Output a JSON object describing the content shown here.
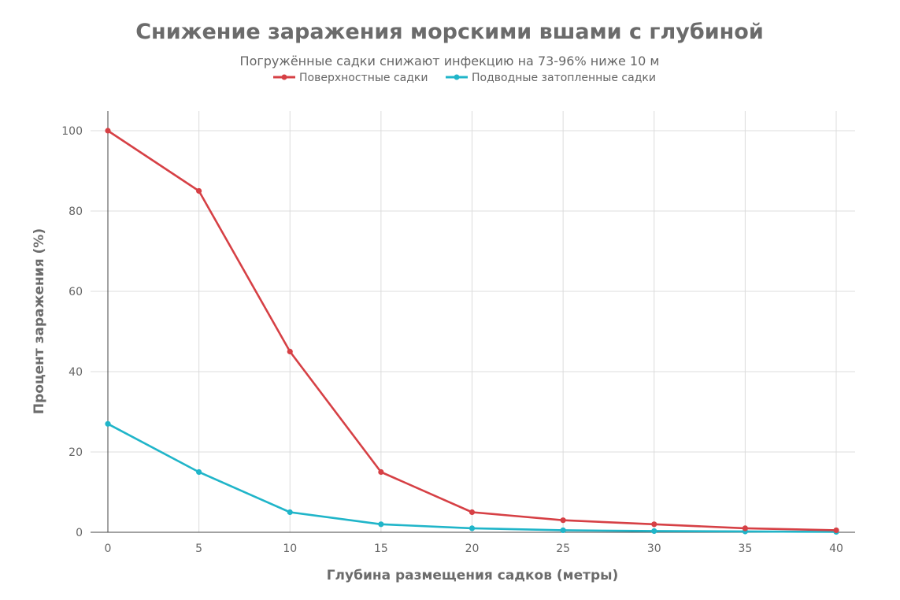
{
  "chart_data": {
    "type": "line",
    "title": "Снижение заражения морскими вшами с глубиной",
    "subtitle": "Погружённые садки снижают инфекцию на 73-96% ниже 10 м",
    "xlabel": "Глубина размещения садков (метры)",
    "ylabel": "Процент заражения (%)",
    "x": [
      0,
      5,
      10,
      15,
      20,
      25,
      30,
      35,
      40
    ],
    "xlim": [
      0,
      40
    ],
    "ylim": [
      0,
      100
    ],
    "x_ticks": [
      0,
      5,
      10,
      15,
      20,
      25,
      30,
      35,
      40
    ],
    "y_ticks": [
      0,
      20,
      40,
      60,
      80,
      100
    ],
    "grid": true,
    "legend_position": "top-center",
    "series": [
      {
        "name": "Поверхностные садки",
        "color": "#d64045",
        "values": [
          100,
          85,
          45,
          15,
          5,
          3,
          2,
          1,
          0.5
        ]
      },
      {
        "name": "Подводные затопленные садки",
        "color": "#20b5c9",
        "values": [
          27,
          15,
          5,
          2,
          1,
          0.5,
          0.3,
          0.2,
          0.1
        ]
      }
    ]
  }
}
